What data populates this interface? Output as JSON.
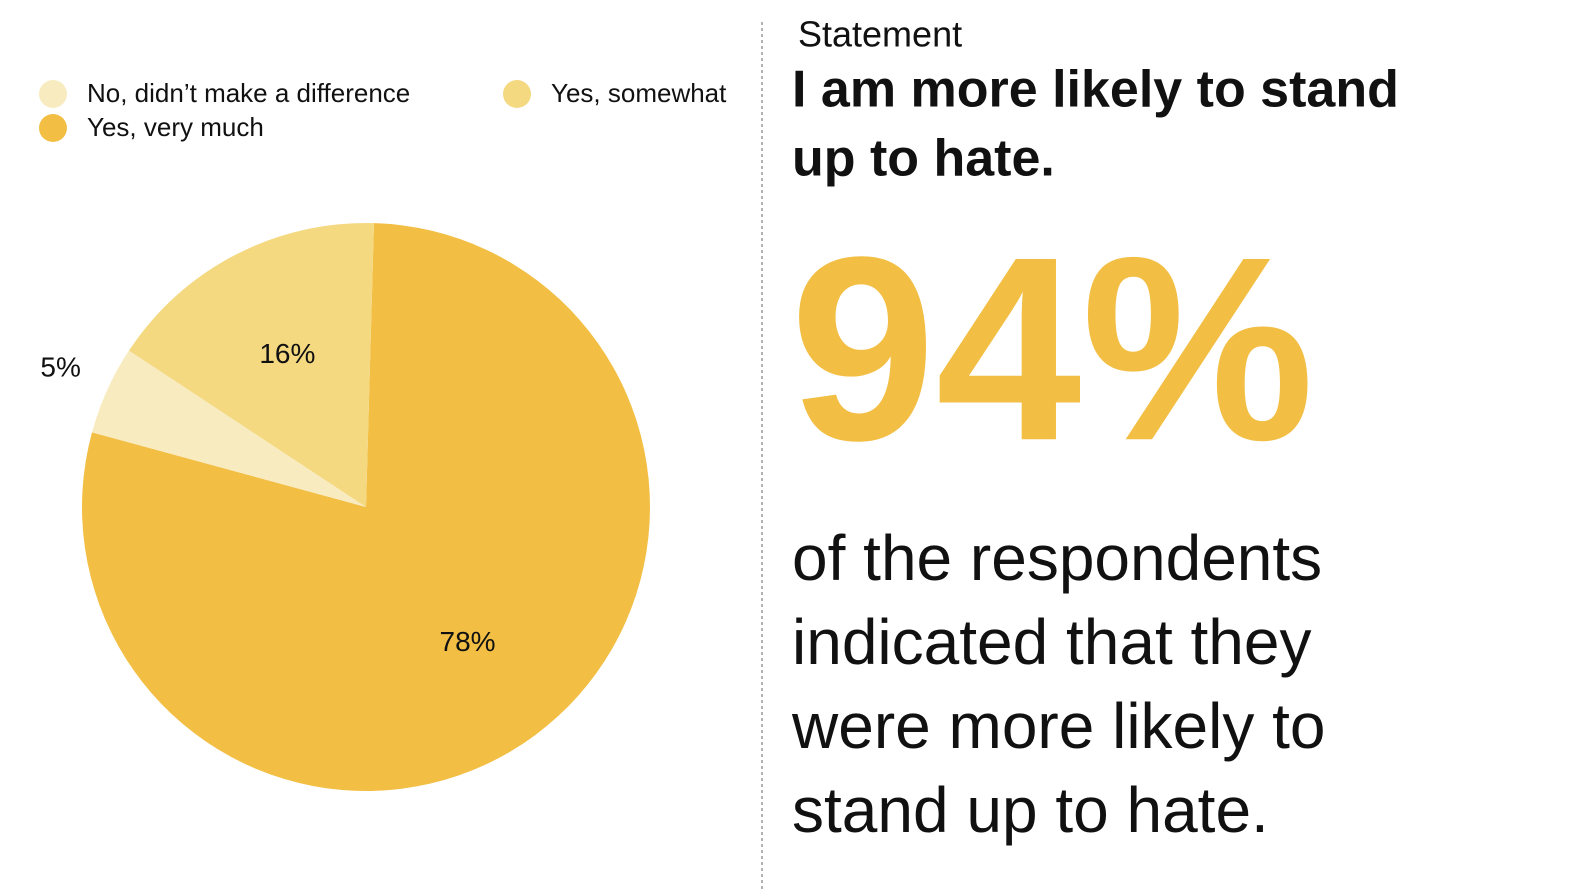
{
  "chart_data": {
    "type": "pie",
    "series": [
      {
        "name": "No, didn’t make a difference",
        "color": "#f8ebbf",
        "values": [
          5
        ],
        "value_labels": [
          "5%"
        ]
      },
      {
        "name": "Yes, somewhat",
        "color": "#f4d981",
        "values": [
          16
        ],
        "value_labels": [
          "16%"
        ]
      },
      {
        "name": "Yes, very much",
        "color": "#f2bf44",
        "values": [
          78
        ],
        "value_labels": [
          "78%"
        ]
      }
    ]
  },
  "statement": {
    "label": "Statement",
    "headline_lines": [
      "I am more likely to stand",
      "up to hate."
    ],
    "figure": "94%",
    "text_lines": [
      "of the respondents",
      "indicated that they",
      "were more likely to",
      "stand up to hate."
    ]
  }
}
